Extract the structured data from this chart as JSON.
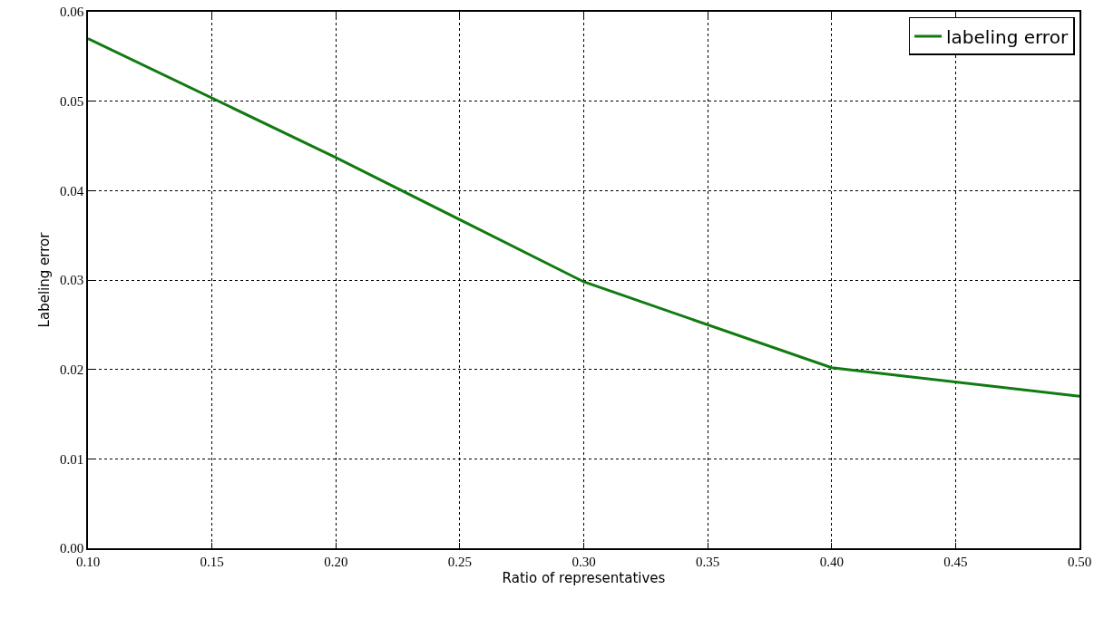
{
  "chart_data": {
    "type": "line",
    "xlabel": "Ratio of representatives",
    "ylabel": "Labeling error",
    "x": [
      0.1,
      0.2,
      0.3,
      0.4,
      0.5
    ],
    "series": [
      {
        "name": "labeling error",
        "color": "#117a11",
        "values": [
          0.057,
          0.0437,
          0.0298,
          0.0202,
          0.017
        ]
      }
    ],
    "xlim": [
      0.1,
      0.5
    ],
    "xticks": [
      {
        "value": 0.1,
        "label": "0.10"
      },
      0.15,
      {
        "value": 0.2,
        "label": "0.20"
      },
      0.25,
      {
        "value": 0.3,
        "label": "0.30"
      },
      0.35,
      {
        "value": 0.4,
        "label": "0.40"
      },
      0.45,
      {
        "value": 0.5,
        "label": "0.50"
      }
    ],
    "ylim": [
      0,
      0.06
    ],
    "yticks": [
      {
        "value": 0,
        "label": "0.00"
      },
      0.01,
      0.02,
      0.03,
      0.04,
      0.05,
      {
        "value": 0.06,
        "label": "0.06"
      }
    ],
    "grid": true,
    "legend": "top right",
    "marker": "none",
    "line_style": "solid"
  }
}
